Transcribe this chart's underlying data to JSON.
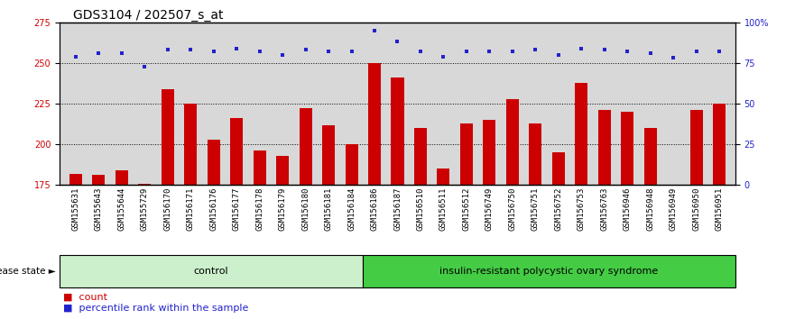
{
  "title": "GDS3104 / 202507_s_at",
  "samples": [
    "GSM155631",
    "GSM155643",
    "GSM155644",
    "GSM155729",
    "GSM156170",
    "GSM156171",
    "GSM156176",
    "GSM156177",
    "GSM156178",
    "GSM156179",
    "GSM156180",
    "GSM156181",
    "GSM156184",
    "GSM156186",
    "GSM156187",
    "GSM156510",
    "GSM156511",
    "GSM156512",
    "GSM156749",
    "GSM156750",
    "GSM156751",
    "GSM156752",
    "GSM156753",
    "GSM156763",
    "GSM156946",
    "GSM156948",
    "GSM156949",
    "GSM156950",
    "GSM156951"
  ],
  "bar_values": [
    182,
    181,
    184,
    176,
    234,
    225,
    203,
    216,
    196,
    193,
    222,
    212,
    200,
    250,
    241,
    210,
    185,
    213,
    215,
    228,
    213,
    195,
    238,
    221,
    220,
    210,
    175,
    221,
    225
  ],
  "dot_values_pct": [
    79,
    81,
    81,
    73,
    83,
    83,
    82,
    84,
    82,
    80,
    83,
    82,
    82,
    95,
    88,
    82,
    79,
    82,
    82,
    82,
    83,
    80,
    84,
    83,
    82,
    81,
    78,
    82,
    82
  ],
  "bar_color": "#cc0000",
  "dot_color": "#2222cc",
  "ylim_left": [
    175,
    275
  ],
  "ylim_right": [
    0,
    100
  ],
  "yticks_left": [
    175,
    200,
    225,
    250,
    275
  ],
  "yticks_right": [
    0,
    25,
    50,
    75,
    100
  ],
  "ytick_labels_right": [
    "0",
    "25",
    "50",
    "75",
    "100%"
  ],
  "hlines": [
    200,
    225,
    250
  ],
  "control_count": 13,
  "group1_label": "control",
  "group2_label": "insulin-resistant polycystic ovary syndrome",
  "group_label_prefix": "disease state",
  "legend_bar_label": "count",
  "legend_dot_label": "percentile rank within the sample",
  "bg_color_plot": "#d8d8d8",
  "bg_color_group1": "#ccf0cc",
  "bg_color_group2": "#44cc44",
  "title_fontsize": 10,
  "tick_fontsize": 7,
  "bar_bottom": 175
}
